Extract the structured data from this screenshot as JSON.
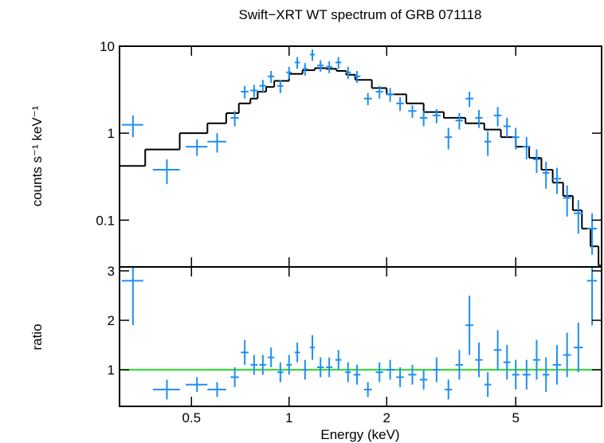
{
  "chart_data": [
    {
      "type": "errorbar",
      "title": "Swift−XRT WT spectrum of GRB 071118",
      "ylabel": "counts s⁻¹ keV⁻¹",
      "xscale": "log",
      "yscale": "log",
      "xlim": [
        0.3,
        9.2
      ],
      "ylim": [
        0.029,
        10
      ],
      "xticks": [
        0.5,
        1,
        2,
        5
      ],
      "yticks": [
        10,
        1,
        0.1
      ],
      "color": "#1e8ff0",
      "x": [
        0.33,
        0.42,
        0.52,
        0.6,
        0.68,
        0.73,
        0.78,
        0.83,
        0.88,
        0.94,
        1.0,
        1.06,
        1.12,
        1.18,
        1.25,
        1.33,
        1.42,
        1.52,
        1.62,
        1.75,
        1.9,
        2.05,
        2.2,
        2.4,
        2.6,
        2.85,
        3.1,
        3.35,
        3.6,
        3.85,
        4.1,
        4.4,
        4.7,
        5.0,
        5.4,
        5.8,
        6.2,
        6.7,
        7.2,
        7.8,
        8.6
      ],
      "xerr": [
        0.025,
        0.04,
        0.04,
        0.04,
        0.02,
        0.02,
        0.02,
        0.02,
        0.02,
        0.02,
        0.02,
        0.02,
        0.02,
        0.02,
        0.03,
        0.03,
        0.03,
        0.03,
        0.04,
        0.05,
        0.05,
        0.06,
        0.06,
        0.07,
        0.07,
        0.08,
        0.08,
        0.09,
        0.1,
        0.1,
        0.1,
        0.12,
        0.12,
        0.13,
        0.15,
        0.15,
        0.15,
        0.2,
        0.2,
        0.25,
        0.3
      ],
      "values": [
        1.25,
        0.38,
        0.7,
        0.8,
        1.5,
        3.0,
        3.1,
        3.5,
        4.5,
        3.5,
        5.0,
        6.5,
        5.5,
        8.0,
        6.0,
        5.8,
        6.5,
        5.0,
        4.5,
        2.5,
        3.0,
        2.8,
        2.2,
        1.8,
        1.5,
        1.6,
        0.9,
        1.4,
        2.5,
        1.5,
        0.8,
        1.6,
        1.2,
        0.9,
        0.7,
        0.5,
        0.35,
        0.3,
        0.18,
        0.12,
        0.08
      ],
      "yerr": [
        0.35,
        0.12,
        0.15,
        0.2,
        0.3,
        0.5,
        0.5,
        0.6,
        0.7,
        0.6,
        0.8,
        1.0,
        0.9,
        1.2,
        0.9,
        0.9,
        1.0,
        0.8,
        0.7,
        0.4,
        0.5,
        0.5,
        0.4,
        0.3,
        0.3,
        0.3,
        0.25,
        0.3,
        0.5,
        0.35,
        0.25,
        0.4,
        0.3,
        0.25,
        0.2,
        0.15,
        0.12,
        0.1,
        0.07,
        0.05,
        0.04
      ],
      "model_color": "#000000",
      "model_bins": [
        0.3,
        0.36,
        0.46,
        0.56,
        0.64,
        0.7,
        0.76,
        0.8,
        0.85,
        0.9,
        1.0,
        1.1,
        1.2,
        1.3,
        1.4,
        1.5,
        1.6,
        1.8,
        2.0,
        2.3,
        2.6,
        3.0,
        3.5,
        4.0,
        4.5,
        5.0,
        5.5,
        6.0,
        6.5,
        7.0,
        7.5,
        8.0,
        8.5,
        9.0,
        9.2
      ],
      "model": [
        0.42,
        0.65,
        1.0,
        1.3,
        1.7,
        2.2,
        2.5,
        3.0,
        3.4,
        4.0,
        4.8,
        5.3,
        5.6,
        5.5,
        5.2,
        4.7,
        4.1,
        3.3,
        2.8,
        2.2,
        1.75,
        1.5,
        1.3,
        1.1,
        0.9,
        0.7,
        0.52,
        0.38,
        0.27,
        0.19,
        0.13,
        0.08,
        0.05,
        0.03
      ]
    },
    {
      "type": "errorbar",
      "xlabel": "Energy (keV)",
      "ylabel": "ratio",
      "xscale": "log",
      "yscale": "linear",
      "xlim": [
        0.3,
        9.2
      ],
      "ylim": [
        0.26,
        3.08
      ],
      "xticks": [
        0.5,
        1,
        2,
        5
      ],
      "yticks": [
        3,
        2,
        1
      ],
      "color": "#1e8ff0",
      "reference": 1,
      "reference_color": "#22dd22",
      "x": [
        0.33,
        0.42,
        0.52,
        0.6,
        0.68,
        0.73,
        0.78,
        0.83,
        0.88,
        0.94,
        1.0,
        1.06,
        1.12,
        1.18,
        1.25,
        1.33,
        1.42,
        1.52,
        1.62,
        1.75,
        1.9,
        2.05,
        2.2,
        2.4,
        2.6,
        2.85,
        3.1,
        3.35,
        3.6,
        3.85,
        4.1,
        4.4,
        4.7,
        5.0,
        5.4,
        5.8,
        6.2,
        6.7,
        7.2,
        7.8,
        8.6
      ],
      "xerr": [
        0.025,
        0.04,
        0.04,
        0.04,
        0.02,
        0.02,
        0.02,
        0.02,
        0.02,
        0.02,
        0.02,
        0.02,
        0.02,
        0.02,
        0.03,
        0.03,
        0.03,
        0.03,
        0.04,
        0.05,
        0.05,
        0.06,
        0.06,
        0.07,
        0.07,
        0.08,
        0.08,
        0.09,
        0.1,
        0.1,
        0.1,
        0.12,
        0.12,
        0.13,
        0.15,
        0.15,
        0.15,
        0.2,
        0.2,
        0.25,
        0.3
      ],
      "values": [
        2.8,
        0.6,
        0.7,
        0.6,
        0.85,
        1.35,
        1.1,
        1.1,
        1.25,
        0.95,
        1.1,
        1.35,
        1.0,
        1.45,
        1.05,
        1.05,
        1.2,
        0.95,
        0.9,
        0.6,
        0.95,
        1.0,
        0.85,
        0.9,
        0.8,
        1.0,
        0.6,
        1.1,
        1.9,
        1.2,
        0.7,
        1.4,
        1.15,
        0.9,
        0.9,
        1.2,
        0.9,
        1.1,
        1.3,
        1.45,
        2.8
      ],
      "yerr": [
        0.9,
        0.2,
        0.15,
        0.15,
        0.2,
        0.25,
        0.2,
        0.2,
        0.2,
        0.2,
        0.2,
        0.2,
        0.2,
        0.25,
        0.2,
        0.2,
        0.2,
        0.2,
        0.2,
        0.15,
        0.2,
        0.2,
        0.2,
        0.2,
        0.2,
        0.25,
        0.2,
        0.3,
        0.6,
        0.35,
        0.25,
        0.4,
        0.35,
        0.3,
        0.3,
        0.4,
        0.35,
        0.4,
        0.45,
        0.5,
        0.9
      ]
    }
  ]
}
